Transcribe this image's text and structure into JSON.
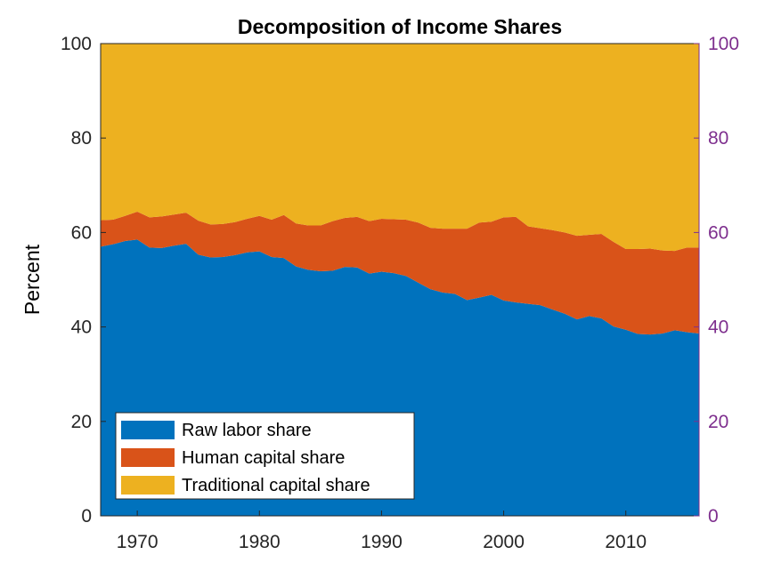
{
  "chart_data": {
    "type": "area",
    "stacked": true,
    "title": "Decomposition of Income Shares",
    "xlabel": "",
    "ylabel": "Percent",
    "xlim": [
      1967,
      2016
    ],
    "ylim": [
      0,
      100
    ],
    "yticks": [
      0,
      20,
      40,
      60,
      80,
      100
    ],
    "xticks": [
      1970,
      1980,
      1990,
      2000,
      2010
    ],
    "right_axis": {
      "ticks": [
        0,
        20,
        40,
        60,
        80,
        100
      ],
      "color": "#7e2f8e"
    },
    "legend_position": "bottom-left",
    "grid": false,
    "x": [
      1967,
      1968,
      1969,
      1970,
      1971,
      1972,
      1973,
      1974,
      1975,
      1976,
      1977,
      1978,
      1979,
      1980,
      1981,
      1982,
      1983,
      1984,
      1985,
      1986,
      1987,
      1988,
      1989,
      1990,
      1991,
      1992,
      1993,
      1994,
      1995,
      1996,
      1997,
      1998,
      1999,
      2000,
      2001,
      2002,
      2003,
      2004,
      2005,
      2006,
      2007,
      2008,
      2009,
      2010,
      2011,
      2012,
      2013,
      2014,
      2015,
      2016
    ],
    "series": [
      {
        "name": "Raw labor share",
        "color": "#0072bd",
        "values": [
          57.0,
          57.5,
          58.2,
          58.5,
          56.8,
          56.7,
          57.2,
          57.6,
          55.3,
          54.7,
          54.8,
          55.2,
          55.8,
          56.0,
          54.8,
          54.6,
          52.8,
          52.1,
          51.8,
          51.9,
          52.7,
          52.6,
          51.3,
          51.7,
          51.4,
          50.8,
          49.4,
          48.0,
          47.3,
          47.0,
          45.7,
          46.2,
          46.8,
          45.6,
          45.2,
          44.9,
          44.6,
          43.7,
          42.8,
          41.6,
          42.3,
          41.8,
          40.1,
          39.4,
          38.5,
          38.4,
          38.6,
          39.3,
          38.9,
          38.6
        ]
      },
      {
        "name": "Human capital share",
        "color": "#d95319",
        "values": [
          5.6,
          5.2,
          5.3,
          5.9,
          6.4,
          6.7,
          6.6,
          6.6,
          7.2,
          7.0,
          7.0,
          7.0,
          7.1,
          7.5,
          7.9,
          9.1,
          9.1,
          9.4,
          9.7,
          10.5,
          10.4,
          10.7,
          11.1,
          11.2,
          11.4,
          11.9,
          12.7,
          13.0,
          13.5,
          13.8,
          15.1,
          15.9,
          15.5,
          17.6,
          18.1,
          16.4,
          16.3,
          16.8,
          17.2,
          17.7,
          17.2,
          17.9,
          17.9,
          17.1,
          18.0,
          18.2,
          17.6,
          16.8,
          17.9,
          18.2
        ]
      },
      {
        "name": "Traditional capital share",
        "color": "#edb120",
        "values": [
          37.4,
          37.3,
          36.5,
          35.6,
          36.8,
          36.6,
          36.2,
          35.8,
          37.5,
          38.3,
          38.2,
          37.8,
          37.1,
          36.5,
          37.3,
          36.3,
          38.1,
          38.5,
          38.5,
          37.6,
          36.9,
          36.7,
          37.6,
          37.1,
          37.2,
          37.3,
          37.9,
          39.0,
          39.2,
          39.2,
          39.2,
          37.9,
          37.7,
          36.8,
          36.7,
          38.7,
          39.1,
          39.5,
          40.0,
          40.7,
          40.5,
          40.3,
          42.0,
          43.5,
          43.5,
          43.4,
          43.8,
          43.9,
          43.2,
          43.2
        ]
      }
    ]
  }
}
